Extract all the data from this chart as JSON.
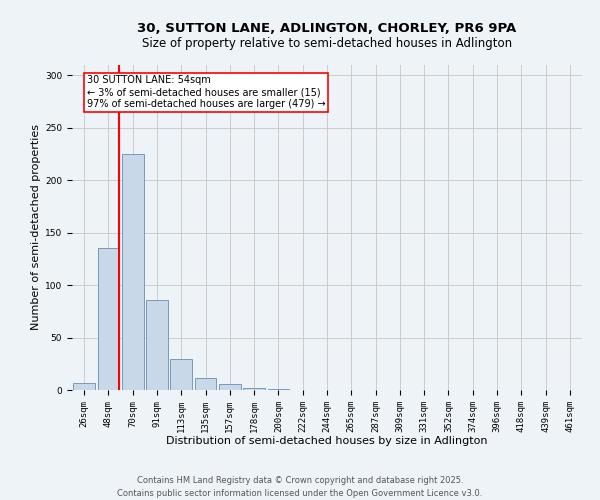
{
  "title_line1": "30, SUTTON LANE, ADLINGTON, CHORLEY, PR6 9PA",
  "title_line2": "Size of property relative to semi-detached houses in Adlington",
  "xlabel": "Distribution of semi-detached houses by size in Adlington",
  "ylabel": "Number of semi-detached properties",
  "categories": [
    "26sqm",
    "48sqm",
    "70sqm",
    "91sqm",
    "113sqm",
    "135sqm",
    "157sqm",
    "178sqm",
    "200sqm",
    "222sqm",
    "244sqm",
    "265sqm",
    "287sqm",
    "309sqm",
    "331sqm",
    "352sqm",
    "374sqm",
    "396sqm",
    "418sqm",
    "439sqm",
    "461sqm"
  ],
  "values": [
    7,
    135,
    225,
    86,
    30,
    11,
    6,
    2,
    1,
    0,
    0,
    0,
    0,
    0,
    0,
    0,
    0,
    0,
    0,
    0,
    0
  ],
  "bar_color": "#c8d8e8",
  "bar_edge_color": "#7799bb",
  "red_line_x": 1.45,
  "annotation_line1": "30 SUTTON LANE: 54sqm",
  "annotation_line2": "← 3% of semi-detached houses are smaller (15)",
  "annotation_line3": "97% of semi-detached houses are larger (479) →",
  "annotation_box_color": "white",
  "annotation_box_edge": "red",
  "red_line_color": "red",
  "grid_color": "#cccccc",
  "background_color": "#eef3f8",
  "ylim": [
    0,
    310
  ],
  "yticks": [
    0,
    50,
    100,
    150,
    200,
    250,
    300
  ],
  "footer_line1": "Contains HM Land Registry data © Crown copyright and database right 2025.",
  "footer_line2": "Contains public sector information licensed under the Open Government Licence v3.0.",
  "title_fontsize": 9.5,
  "subtitle_fontsize": 8.5,
  "axis_label_fontsize": 8,
  "tick_fontsize": 6.5,
  "annotation_fontsize": 7,
  "footer_fontsize": 6
}
